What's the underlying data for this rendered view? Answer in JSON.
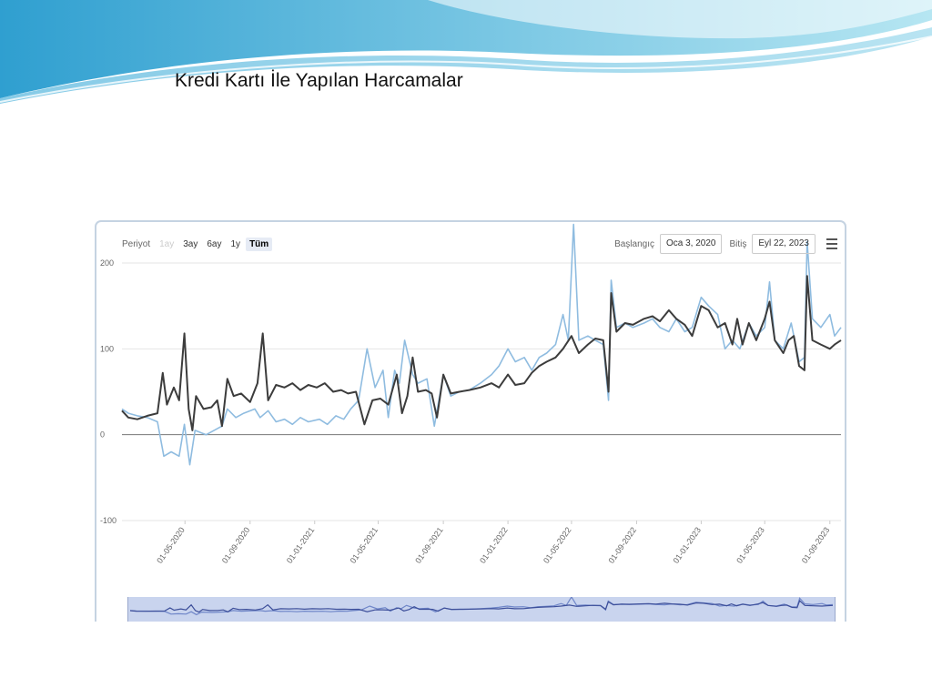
{
  "slide": {
    "title": "Kredi Kartı İle Yapılan Harcamalar"
  },
  "toolbar": {
    "period_label": "Periyot",
    "range_buttons": [
      {
        "label": "1ay",
        "state": "disabled"
      },
      {
        "label": "3ay",
        "state": "normal"
      },
      {
        "label": "6ay",
        "state": "normal"
      },
      {
        "label": "1y",
        "state": "normal"
      },
      {
        "label": "Tüm",
        "state": "selected"
      }
    ],
    "start_label": "Başlangıç",
    "start_value": "Oca 3, 2020",
    "end_label": "Bitiş",
    "end_value": "Eyl 22, 2023",
    "menu_icon": "hamburger-menu-icon"
  },
  "chart_data": {
    "type": "line",
    "title": "",
    "xlabel": "",
    "ylabel": "",
    "ylim": [
      -100,
      200
    ],
    "yticks": [
      -100,
      0,
      100,
      200
    ],
    "grid": true,
    "legend": "none",
    "x_range": [
      "2020-01-03",
      "2023-09-22"
    ],
    "xtick_labels": [
      "01-05-2020",
      "01-09-2020",
      "01-01-2021",
      "01-05-2021",
      "01-09-2021",
      "01-01-2022",
      "01-05-2022",
      "01-09-2022",
      "01-01-2023",
      "01-05-2023",
      "01-09-2023"
    ],
    "xtick_dates": [
      "2020-05-01",
      "2020-09-01",
      "2021-01-01",
      "2021-05-01",
      "2021-09-01",
      "2022-01-01",
      "2022-05-01",
      "2022-09-01",
      "2023-01-01",
      "2023-05-01",
      "2023-09-01"
    ],
    "series": [
      {
        "color": "#3c3c3c",
        "points": [
          [
            "2020-01-03",
            28
          ],
          [
            "2020-01-15",
            20
          ],
          [
            "2020-02-01",
            18
          ],
          [
            "2020-02-20",
            22
          ],
          [
            "2020-03-10",
            25
          ],
          [
            "2020-03-20",
            72
          ],
          [
            "2020-03-28",
            35
          ],
          [
            "2020-04-10",
            55
          ],
          [
            "2020-04-20",
            40
          ],
          [
            "2020-04-30",
            118
          ],
          [
            "2020-05-08",
            30
          ],
          [
            "2020-05-15",
            5
          ],
          [
            "2020-05-22",
            45
          ],
          [
            "2020-06-05",
            30
          ],
          [
            "2020-06-20",
            32
          ],
          [
            "2020-07-01",
            40
          ],
          [
            "2020-07-10",
            10
          ],
          [
            "2020-07-20",
            65
          ],
          [
            "2020-08-01",
            45
          ],
          [
            "2020-08-15",
            48
          ],
          [
            "2020-09-01",
            38
          ],
          [
            "2020-09-15",
            60
          ],
          [
            "2020-09-25",
            118
          ],
          [
            "2020-10-05",
            40
          ],
          [
            "2020-10-20",
            58
          ],
          [
            "2020-11-05",
            55
          ],
          [
            "2020-11-20",
            60
          ],
          [
            "2020-12-05",
            52
          ],
          [
            "2020-12-20",
            58
          ],
          [
            "2021-01-05",
            55
          ],
          [
            "2021-01-20",
            60
          ],
          [
            "2021-02-05",
            50
          ],
          [
            "2021-02-20",
            52
          ],
          [
            "2021-03-05",
            48
          ],
          [
            "2021-03-20",
            50
          ],
          [
            "2021-04-05",
            12
          ],
          [
            "2021-04-20",
            40
          ],
          [
            "2021-05-05",
            42
          ],
          [
            "2021-05-20",
            35
          ],
          [
            "2021-06-05",
            70
          ],
          [
            "2021-06-15",
            25
          ],
          [
            "2021-06-25",
            45
          ],
          [
            "2021-07-05",
            90
          ],
          [
            "2021-07-15",
            50
          ],
          [
            "2021-07-30",
            52
          ],
          [
            "2021-08-10",
            48
          ],
          [
            "2021-08-20",
            20
          ],
          [
            "2021-09-01",
            70
          ],
          [
            "2021-09-15",
            48
          ],
          [
            "2021-10-01",
            50
          ],
          [
            "2021-10-20",
            52
          ],
          [
            "2021-11-10",
            55
          ],
          [
            "2021-12-01",
            60
          ],
          [
            "2021-12-15",
            55
          ],
          [
            "2022-01-01",
            70
          ],
          [
            "2022-01-15",
            58
          ],
          [
            "2022-02-01",
            60
          ],
          [
            "2022-02-15",
            72
          ],
          [
            "2022-03-01",
            80
          ],
          [
            "2022-03-15",
            85
          ],
          [
            "2022-04-01",
            90
          ],
          [
            "2022-04-15",
            100
          ],
          [
            "2022-05-01",
            115
          ],
          [
            "2022-05-15",
            95
          ],
          [
            "2022-06-01",
            105
          ],
          [
            "2022-06-15",
            112
          ],
          [
            "2022-06-30",
            110
          ],
          [
            "2022-07-10",
            50
          ],
          [
            "2022-07-15",
            165
          ],
          [
            "2022-07-25",
            120
          ],
          [
            "2022-08-10",
            130
          ],
          [
            "2022-08-25",
            128
          ],
          [
            "2022-09-15",
            135
          ],
          [
            "2022-10-01",
            138
          ],
          [
            "2022-10-15",
            132
          ],
          [
            "2022-11-01",
            145
          ],
          [
            "2022-11-15",
            135
          ],
          [
            "2022-12-01",
            128
          ],
          [
            "2022-12-15",
            115
          ],
          [
            "2023-01-01",
            150
          ],
          [
            "2023-01-15",
            145
          ],
          [
            "2023-02-01",
            125
          ],
          [
            "2023-02-15",
            130
          ],
          [
            "2023-03-01",
            105
          ],
          [
            "2023-03-10",
            135
          ],
          [
            "2023-03-20",
            105
          ],
          [
            "2023-04-01",
            130
          ],
          [
            "2023-04-15",
            110
          ],
          [
            "2023-05-01",
            135
          ],
          [
            "2023-05-10",
            155
          ],
          [
            "2023-05-20",
            110
          ],
          [
            "2023-06-05",
            95
          ],
          [
            "2023-06-15",
            110
          ],
          [
            "2023-06-25",
            115
          ],
          [
            "2023-07-05",
            80
          ],
          [
            "2023-07-15",
            75
          ],
          [
            "2023-07-20",
            185
          ],
          [
            "2023-07-30",
            110
          ],
          [
            "2023-08-15",
            105
          ],
          [
            "2023-09-01",
            100
          ],
          [
            "2023-09-10",
            105
          ],
          [
            "2023-09-22",
            110
          ]
        ]
      },
      {
        "color": "#8fbce0",
        "points": [
          [
            "2020-01-03",
            30
          ],
          [
            "2020-01-15",
            25
          ],
          [
            "2020-02-01",
            22
          ],
          [
            "2020-02-20",
            20
          ],
          [
            "2020-03-10",
            15
          ],
          [
            "2020-03-22",
            -25
          ],
          [
            "2020-04-05",
            -20
          ],
          [
            "2020-04-20",
            -25
          ],
          [
            "2020-04-30",
            12
          ],
          [
            "2020-05-10",
            -35
          ],
          [
            "2020-05-20",
            5
          ],
          [
            "2020-06-10",
            0
          ],
          [
            "2020-06-25",
            5
          ],
          [
            "2020-07-10",
            10
          ],
          [
            "2020-07-20",
            30
          ],
          [
            "2020-08-05",
            20
          ],
          [
            "2020-08-20",
            25
          ],
          [
            "2020-09-10",
            30
          ],
          [
            "2020-09-20",
            20
          ],
          [
            "2020-10-05",
            28
          ],
          [
            "2020-10-20",
            15
          ],
          [
            "2020-11-05",
            18
          ],
          [
            "2020-11-20",
            12
          ],
          [
            "2020-12-05",
            20
          ],
          [
            "2020-12-20",
            15
          ],
          [
            "2021-01-10",
            18
          ],
          [
            "2021-01-25",
            12
          ],
          [
            "2021-02-10",
            22
          ],
          [
            "2021-02-25",
            18
          ],
          [
            "2021-03-10",
            30
          ],
          [
            "2021-03-25",
            40
          ],
          [
            "2021-04-10",
            100
          ],
          [
            "2021-04-25",
            55
          ],
          [
            "2021-05-10",
            75
          ],
          [
            "2021-05-20",
            20
          ],
          [
            "2021-06-01",
            75
          ],
          [
            "2021-06-10",
            60
          ],
          [
            "2021-06-20",
            110
          ],
          [
            "2021-07-05",
            70
          ],
          [
            "2021-07-15",
            60
          ],
          [
            "2021-08-01",
            65
          ],
          [
            "2021-08-15",
            10
          ],
          [
            "2021-09-01",
            70
          ],
          [
            "2021-09-15",
            45
          ],
          [
            "2021-10-01",
            50
          ],
          [
            "2021-10-20",
            52
          ],
          [
            "2021-11-10",
            60
          ],
          [
            "2021-12-01",
            70
          ],
          [
            "2021-12-15",
            80
          ],
          [
            "2022-01-01",
            100
          ],
          [
            "2022-01-15",
            85
          ],
          [
            "2022-02-01",
            90
          ],
          [
            "2022-02-15",
            75
          ],
          [
            "2022-03-01",
            90
          ],
          [
            "2022-03-15",
            95
          ],
          [
            "2022-04-01",
            105
          ],
          [
            "2022-04-15",
            140
          ],
          [
            "2022-04-25",
            110
          ],
          [
            "2022-05-05",
            245
          ],
          [
            "2022-05-15",
            110
          ],
          [
            "2022-06-01",
            115
          ],
          [
            "2022-06-15",
            110
          ],
          [
            "2022-06-30",
            105
          ],
          [
            "2022-07-10",
            40
          ],
          [
            "2022-07-15",
            180
          ],
          [
            "2022-07-25",
            125
          ],
          [
            "2022-08-10",
            130
          ],
          [
            "2022-08-25",
            125
          ],
          [
            "2022-09-15",
            130
          ],
          [
            "2022-10-01",
            135
          ],
          [
            "2022-10-15",
            125
          ],
          [
            "2022-11-01",
            120
          ],
          [
            "2022-11-15",
            135
          ],
          [
            "2022-12-01",
            120
          ],
          [
            "2022-12-15",
            125
          ],
          [
            "2023-01-01",
            160
          ],
          [
            "2023-01-15",
            150
          ],
          [
            "2023-02-01",
            140
          ],
          [
            "2023-02-15",
            100
          ],
          [
            "2023-03-01",
            110
          ],
          [
            "2023-03-15",
            100
          ],
          [
            "2023-04-01",
            130
          ],
          [
            "2023-04-15",
            115
          ],
          [
            "2023-05-01",
            125
          ],
          [
            "2023-05-10",
            178
          ],
          [
            "2023-05-20",
            110
          ],
          [
            "2023-06-05",
            100
          ],
          [
            "2023-06-20",
            130
          ],
          [
            "2023-07-05",
            85
          ],
          [
            "2023-07-15",
            90
          ],
          [
            "2023-07-20",
            225
          ],
          [
            "2023-07-30",
            135
          ],
          [
            "2023-08-15",
            125
          ],
          [
            "2023-09-01",
            140
          ],
          [
            "2023-09-10",
            115
          ],
          [
            "2023-09-22",
            125
          ]
        ]
      }
    ]
  }
}
